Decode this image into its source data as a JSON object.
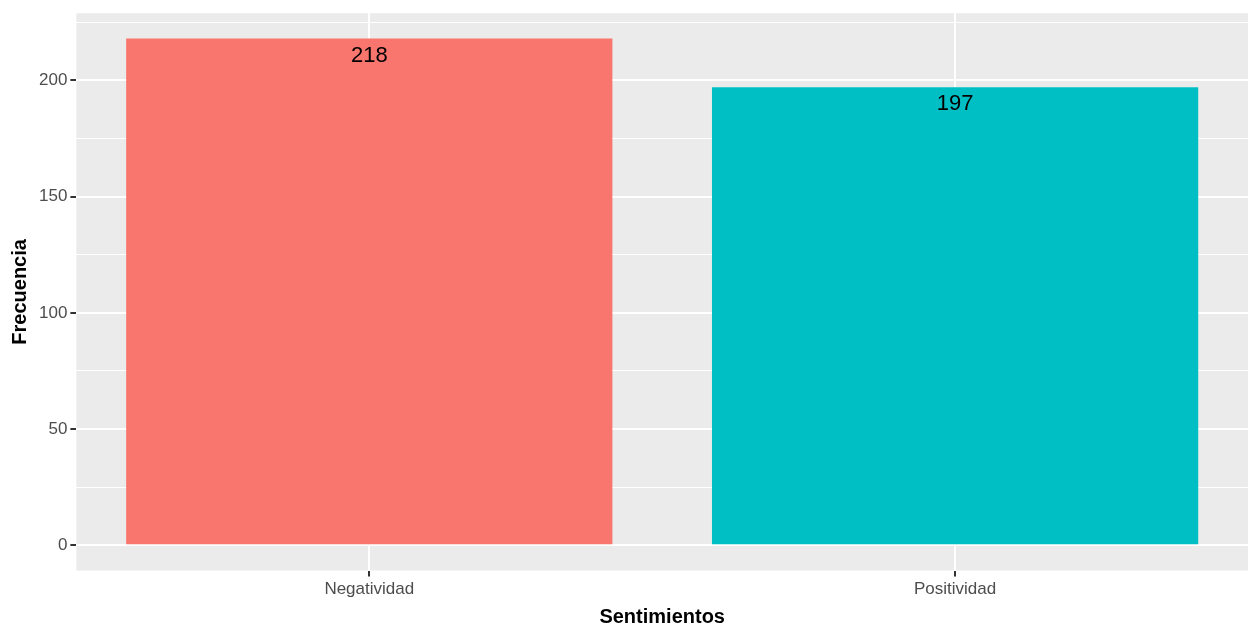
{
  "chart_data": {
    "type": "bar",
    "xlabel": "Sentimientos",
    "ylabel": "Frecuencia",
    "categories": [
      "Negatividad",
      "Positividad"
    ],
    "values": [
      218,
      197
    ],
    "colors": [
      "#f8766d",
      "#00bfc4"
    ],
    "ylim": [
      -10.9,
      228.9
    ],
    "yticks": [
      0,
      {
        "value": 25,
        "label": null
      },
      50,
      {
        "value": 75,
        "label": null
      },
      100,
      {
        "value": 125,
        "label": null
      },
      150,
      {
        "value": 175,
        "label": null
      },
      200,
      {
        "value": 225,
        "label": null
      }
    ],
    "grid": true,
    "data_labels": true
  }
}
